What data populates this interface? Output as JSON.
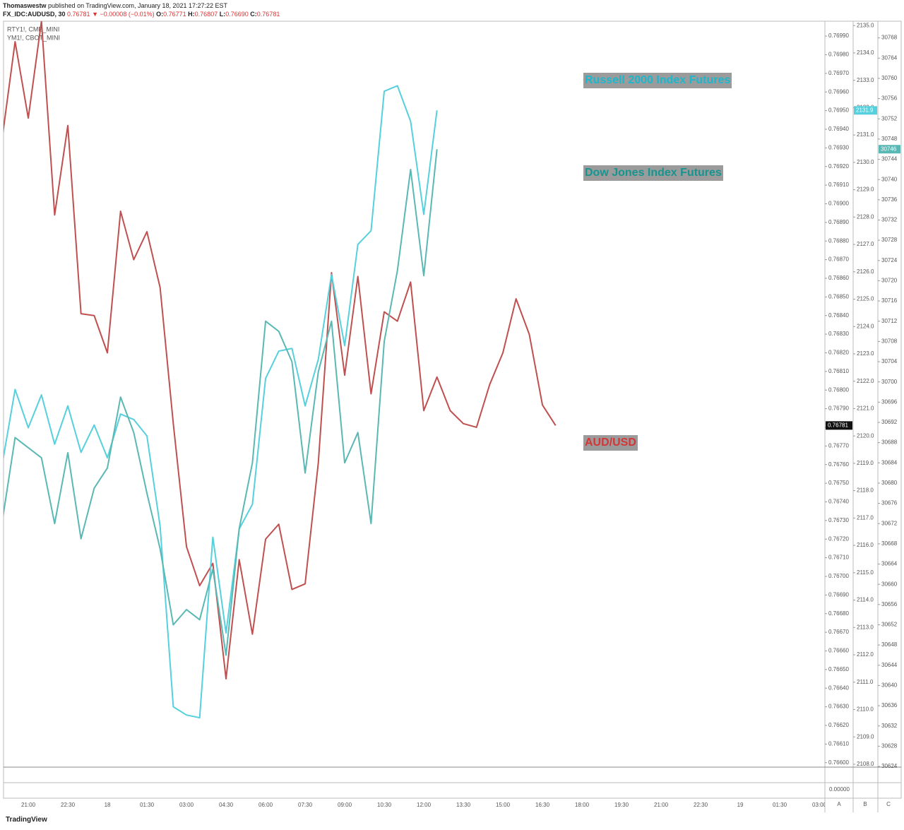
{
  "header": {
    "author": "Thomaswestw",
    "published": "published on TradingView.com, January 18, 2021 17:27:22 EST",
    "symbol": "FX_IDC:AUDUSD, 30",
    "last": "0.76781",
    "arrow": "▼",
    "change": "−0.00008 (−0.01%)",
    "ohlc": [
      {
        "key": "O:",
        "value": "0.76771"
      },
      {
        "key": "H:",
        "value": "0.76807"
      },
      {
        "key": "L:",
        "value": "0.76690"
      },
      {
        "key": "C:",
        "value": "0.76781"
      }
    ]
  },
  "chart_data": {
    "type": "line",
    "legend": [
      "RTY1!, CME_MINI",
      "YM1!, CBOT_MINI"
    ],
    "annotations": [
      {
        "text": "Russell 2000 Index Futures"
      },
      {
        "text": "Dow Jones Index Futures"
      },
      {
        "text": "AUD/USD"
      }
    ],
    "categories": [
      null,
      null,
      "21:00",
      null,
      null,
      "22:30",
      null,
      null,
      "18",
      null,
      null,
      "01:30",
      null,
      null,
      "03:00",
      null,
      null,
      "04:30",
      null,
      null,
      "06:00",
      null,
      null,
      "07:30",
      null,
      null,
      "09:00",
      null,
      null,
      "10:30",
      null,
      null,
      "12:00",
      null,
      null,
      "13:30",
      null,
      null,
      "15:00",
      null,
      null,
      "16:30",
      null,
      null,
      "18:00",
      null,
      null,
      "19:30",
      null,
      null,
      "21:00",
      null,
      null,
      "22:30",
      null,
      null,
      "19",
      null,
      null,
      "01:30",
      null,
      null,
      "03:00"
    ],
    "series": [
      {
        "name": "FX_IDC:AUDUSD, 30",
        "color": "#c0504f",
        "axis": "y",
        "last_label": "0.76781",
        "values": [
          0.76934,
          0.76987,
          0.76946,
          0.76998,
          0.76894,
          0.76942,
          0.76841,
          0.7684,
          0.7682,
          0.76896,
          0.7687,
          0.76885,
          0.76855,
          0.76782,
          0.76716,
          0.76695,
          0.76707,
          0.76645,
          0.76709,
          0.76669,
          0.7672,
          0.76728,
          0.76693,
          0.76696,
          0.76761,
          0.76863,
          0.76808,
          0.76861,
          0.76798,
          0.76842,
          0.76837,
          0.76858,
          0.76789,
          0.76807,
          0.76789,
          0.76782,
          0.7678,
          0.76803,
          0.7682,
          0.76849,
          0.7683,
          0.76792,
          0.76781,
          null,
          null,
          null,
          null,
          null,
          null,
          null,
          null,
          null,
          null,
          null,
          null,
          null,
          null,
          null,
          null,
          null,
          null,
          null,
          null
        ]
      },
      {
        "name": "RTY1!, CME_MINI",
        "color": "#55d0dc",
        "axis": "y2",
        "last_label": "2131.9",
        "values": [
          2118.9,
          2121.7,
          2120.3,
          2121.5,
          2119.7,
          2121.1,
          2119.4,
          2120.4,
          2119.2,
          2120.8,
          2120.6,
          2120.0,
          2116.7,
          2110.1,
          2109.8,
          2109.7,
          2116.3,
          2112.8,
          2116.6,
          2117.5,
          2122.1,
          2123.1,
          2123.2,
          2121.1,
          2122.8,
          2125.9,
          2123.3,
          2127.0,
          2127.5,
          2132.6,
          2132.8,
          2131.5,
          2128.1,
          2131.9,
          null,
          null,
          null,
          null,
          null,
          null,
          null,
          null,
          null,
          null,
          null,
          null,
          null,
          null,
          null,
          null,
          null,
          null,
          null,
          null,
          null,
          null,
          null,
          null,
          null,
          null,
          null,
          null,
          null
        ]
      },
      {
        "name": "YM1!, CBOT_MINI",
        "color": "#5ab8b4",
        "axis": "y3",
        "last_label": "30746",
        "values": [
          30672,
          30689,
          30687,
          30685,
          30672,
          30686,
          30669,
          30679,
          30683,
          30697,
          30690,
          30678,
          30667,
          30652,
          30655,
          30653,
          30663,
          30646,
          30671,
          30684,
          30712,
          30710,
          30704,
          30682,
          30702,
          30712,
          30684,
          30690,
          30672,
          30708,
          30722,
          30742,
          30721,
          30746,
          null,
          null,
          null,
          null,
          null,
          null,
          null,
          null,
          null,
          null,
          null,
          null,
          null,
          null,
          null,
          null,
          null,
          null,
          null,
          null,
          null,
          null,
          null,
          null,
          null,
          null,
          null,
          null,
          null
        ]
      }
    ],
    "ylim": [
      0.76598,
      0.76998
    ],
    "yticks": [
      {
        "value": 0.766,
        "label": "0.76600"
      },
      {
        "value": 0.7661,
        "label": "0.76610"
      },
      {
        "value": 0.7662,
        "label": "0.76620"
      },
      {
        "value": 0.7663,
        "label": "0.76630"
      },
      {
        "value": 0.7664,
        "label": "0.76640"
      },
      {
        "value": 0.7665,
        "label": "0.76650"
      },
      {
        "value": 0.7666,
        "label": "0.76660"
      },
      {
        "value": 0.7667,
        "label": "0.76670"
      },
      {
        "value": 0.7668,
        "label": "0.76680"
      },
      {
        "value": 0.7669,
        "label": "0.76690"
      },
      {
        "value": 0.767,
        "label": "0.76700"
      },
      {
        "value": 0.7671,
        "label": "0.76710"
      },
      {
        "value": 0.7672,
        "label": "0.76720"
      },
      {
        "value": 0.7673,
        "label": "0.76730"
      },
      {
        "value": 0.7674,
        "label": "0.76740"
      },
      {
        "value": 0.7675,
        "label": "0.76750"
      },
      {
        "value": 0.7676,
        "label": "0.76760"
      },
      {
        "value": 0.7677,
        "label": "0.76770"
      },
      {
        "value": 0.7678,
        "label": "0.76780"
      },
      {
        "value": 0.7679,
        "label": "0.76790"
      },
      {
        "value": 0.768,
        "label": "0.76800"
      },
      {
        "value": 0.7681,
        "label": "0.76810"
      },
      {
        "value": 0.7682,
        "label": "0.76820"
      },
      {
        "value": 0.7683,
        "label": "0.76830"
      },
      {
        "value": 0.7684,
        "label": "0.76840"
      },
      {
        "value": 0.7685,
        "label": "0.76850"
      },
      {
        "value": 0.7686,
        "label": "0.76860"
      },
      {
        "value": 0.7687,
        "label": "0.76870"
      },
      {
        "value": 0.7688,
        "label": "0.76880"
      },
      {
        "value": 0.7689,
        "label": "0.76890"
      },
      {
        "value": 0.769,
        "label": "0.76900"
      },
      {
        "value": 0.7691,
        "label": "0.76910"
      },
      {
        "value": 0.7692,
        "label": "0.76920"
      },
      {
        "value": 0.7693,
        "label": "0.76930"
      },
      {
        "value": 0.7694,
        "label": "0.76940"
      },
      {
        "value": 0.7695,
        "label": "0.76950"
      },
      {
        "value": 0.7696,
        "label": "0.76960"
      },
      {
        "value": 0.7697,
        "label": "0.76970"
      },
      {
        "value": 0.7698,
        "label": "0.76980"
      },
      {
        "value": 0.7699,
        "label": "0.76990"
      }
    ],
    "y2lim": [
      2107.92,
      2135.16
    ],
    "y2ticks": [
      {
        "value": 2108,
        "label": "2108.0"
      },
      {
        "value": 2109,
        "label": "2109.0"
      },
      {
        "value": 2110,
        "label": "2110.0"
      },
      {
        "value": 2111,
        "label": "2111.0"
      },
      {
        "value": 2112,
        "label": "2112.0"
      },
      {
        "value": 2113,
        "label": "2113.0"
      },
      {
        "value": 2114,
        "label": "2114.0"
      },
      {
        "value": 2115,
        "label": "2115.0"
      },
      {
        "value": 2116,
        "label": "2116.0"
      },
      {
        "value": 2117,
        "label": "2117.0"
      },
      {
        "value": 2118,
        "label": "2118.0"
      },
      {
        "value": 2119,
        "label": "2119.0"
      },
      {
        "value": 2120,
        "label": "2120.0"
      },
      {
        "value": 2121,
        "label": "2121.0"
      },
      {
        "value": 2122,
        "label": "2122.0"
      },
      {
        "value": 2123,
        "label": "2123.0"
      },
      {
        "value": 2124,
        "label": "2124.0"
      },
      {
        "value": 2125,
        "label": "2125.0"
      },
      {
        "value": 2126,
        "label": "2126.0"
      },
      {
        "value": 2127,
        "label": "2127.0"
      },
      {
        "value": 2128,
        "label": "2128.0"
      },
      {
        "value": 2129,
        "label": "2129.0"
      },
      {
        "value": 2130,
        "label": "2130.0"
      },
      {
        "value": 2131,
        "label": "2131.0"
      },
      {
        "value": 2132,
        "label": "2132.0"
      },
      {
        "value": 2133,
        "label": "2133.0"
      },
      {
        "value": 2134,
        "label": "2134.0"
      },
      {
        "value": 2135,
        "label": "2135.0"
      }
    ],
    "y3lim": [
      30624,
      30771.3
    ],
    "y3ticks": [
      30624,
      30628,
      30632,
      30636,
      30640,
      30644,
      30648,
      30652,
      30656,
      30660,
      30664,
      30668,
      30672,
      30676,
      30680,
      30684,
      30688,
      30692,
      30696,
      30700,
      30704,
      30708,
      30712,
      30716,
      30720,
      30724,
      30728,
      30732,
      30736,
      30740,
      30744,
      30748,
      30752,
      30756,
      30760,
      30764,
      30768
    ],
    "grid": false,
    "lower_pane_label": "0.00000",
    "axis_buttons": [
      "A",
      "B",
      "C"
    ]
  },
  "footer": "TradingView"
}
